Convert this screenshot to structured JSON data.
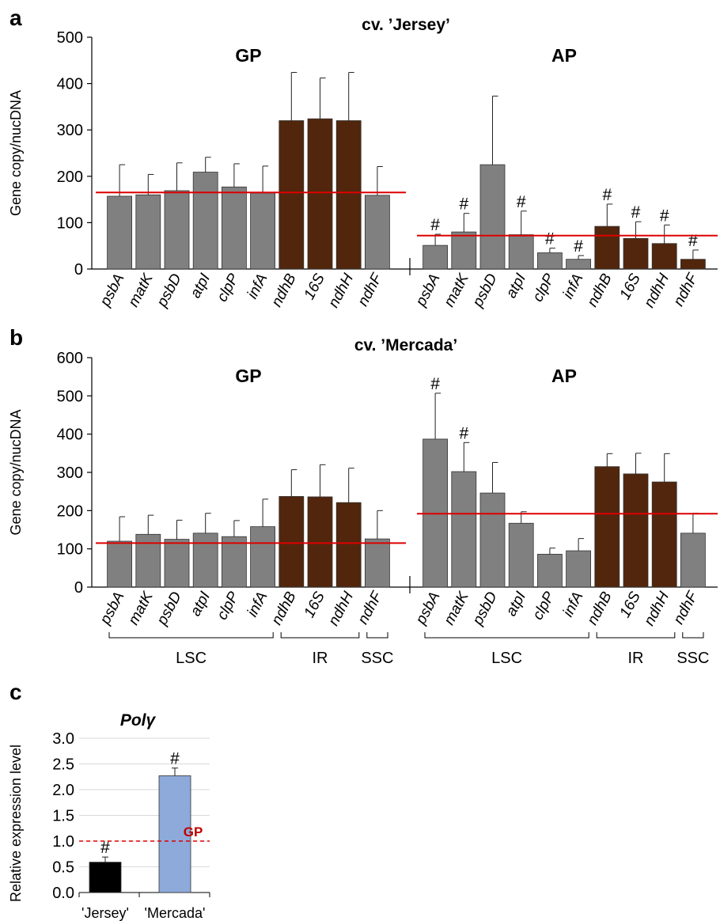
{
  "panels": {
    "a": "a",
    "b": "b",
    "c": "c"
  },
  "hash_symbol": "#",
  "colors": {
    "gray": "#808080",
    "brown": "#52260c",
    "red": "#dd0000",
    "black": "#000000",
    "blue": "#8eaadb",
    "gp_label": "#c00000"
  },
  "chart_data": [
    {
      "id": "a",
      "type": "bar",
      "title": "cv. ’Jersey’",
      "ylabel": "Gene copy/nucDNA",
      "ylim": [
        0,
        500
      ],
      "yticks": [
        0,
        100,
        200,
        300,
        400,
        500
      ],
      "groups": [
        {
          "name": "GP",
          "reference_line": 165,
          "categories": [
            "psbA",
            "matK",
            "psbD",
            "atpI",
            "clpP",
            "infA",
            "ndhB",
            "16S",
            "ndhH",
            "ndhF"
          ],
          "values": [
            157,
            160,
            169,
            209,
            177,
            164,
            320,
            324,
            320,
            159
          ],
          "errors": [
            68,
            44,
            60,
            32,
            50,
            58,
            104,
            88,
            104,
            62
          ],
          "colors": [
            "gray",
            "gray",
            "gray",
            "gray",
            "gray",
            "gray",
            "brown",
            "brown",
            "brown",
            "gray"
          ],
          "significant": [
            false,
            false,
            false,
            false,
            false,
            false,
            false,
            false,
            false,
            false
          ]
        },
        {
          "name": "AP",
          "reference_line": 72,
          "categories": [
            "psbA",
            "matK",
            "psbD",
            "atpI",
            "clpP",
            "infA",
            "ndhB",
            "16S",
            "ndhH",
            "ndhF"
          ],
          "values": [
            51,
            80,
            225,
            74,
            35,
            21,
            92,
            66,
            55,
            21
          ],
          "errors": [
            24,
            40,
            148,
            51,
            10,
            8,
            48,
            36,
            40,
            20
          ],
          "colors": [
            "gray",
            "gray",
            "gray",
            "gray",
            "gray",
            "gray",
            "brown",
            "brown",
            "brown",
            "brown"
          ],
          "significant": [
            true,
            true,
            false,
            true,
            true,
            true,
            true,
            true,
            true,
            true
          ]
        }
      ]
    },
    {
      "id": "b",
      "type": "bar",
      "title": "cv. ’Mercada’",
      "ylabel": "Gene copy/nucDNA",
      "ylim": [
        0,
        600
      ],
      "yticks": [
        0,
        100,
        200,
        300,
        400,
        500,
        600
      ],
      "groups": [
        {
          "name": "GP",
          "reference_line": 115,
          "categories": [
            "psbA",
            "matK",
            "psbD",
            "atpI",
            "clpP",
            "infA",
            "ndhB",
            "16S",
            "ndhH",
            "ndhF"
          ],
          "values": [
            120,
            138,
            125,
            141,
            132,
            158,
            237,
            236,
            221,
            126
          ],
          "errors": [
            64,
            50,
            50,
            52,
            42,
            72,
            70,
            84,
            90,
            74
          ],
          "colors": [
            "gray",
            "gray",
            "gray",
            "gray",
            "gray",
            "gray",
            "brown",
            "brown",
            "brown",
            "gray"
          ],
          "significant": [
            false,
            false,
            false,
            false,
            false,
            false,
            false,
            false,
            false,
            false
          ]
        },
        {
          "name": "AP",
          "reference_line": 192,
          "categories": [
            "psbA",
            "matK",
            "psbD",
            "atpI",
            "clpP",
            "infA",
            "ndhB",
            "16S",
            "ndhH",
            "ndhF"
          ],
          "values": [
            387,
            302,
            246,
            167,
            86,
            95,
            315,
            296,
            275,
            141
          ],
          "errors": [
            120,
            76,
            80,
            30,
            16,
            32,
            34,
            54,
            74,
            52
          ],
          "colors": [
            "gray",
            "gray",
            "gray",
            "gray",
            "gray",
            "gray",
            "brown",
            "brown",
            "brown",
            "gray"
          ],
          "significant": [
            true,
            true,
            false,
            false,
            false,
            false,
            false,
            false,
            false,
            false
          ]
        }
      ],
      "regions": [
        "LSC",
        "IR",
        "SSC"
      ]
    },
    {
      "id": "c",
      "type": "bar",
      "title": "Polγ",
      "ylabel": "Relative expression level",
      "ylim": [
        0,
        3.0
      ],
      "yticks": [
        "0.0",
        "0.5",
        "1.0",
        "1.5",
        "2.0",
        "2.5",
        "3.0"
      ],
      "categories": [
        "'Jersey'",
        "'Mercada'"
      ],
      "values": [
        0.59,
        2.27
      ],
      "errors": [
        0.1,
        0.15
      ],
      "colors": [
        "black",
        "blue"
      ],
      "significant": [
        true,
        true
      ],
      "reference_line": 1.0,
      "reference_label": "GP"
    }
  ]
}
